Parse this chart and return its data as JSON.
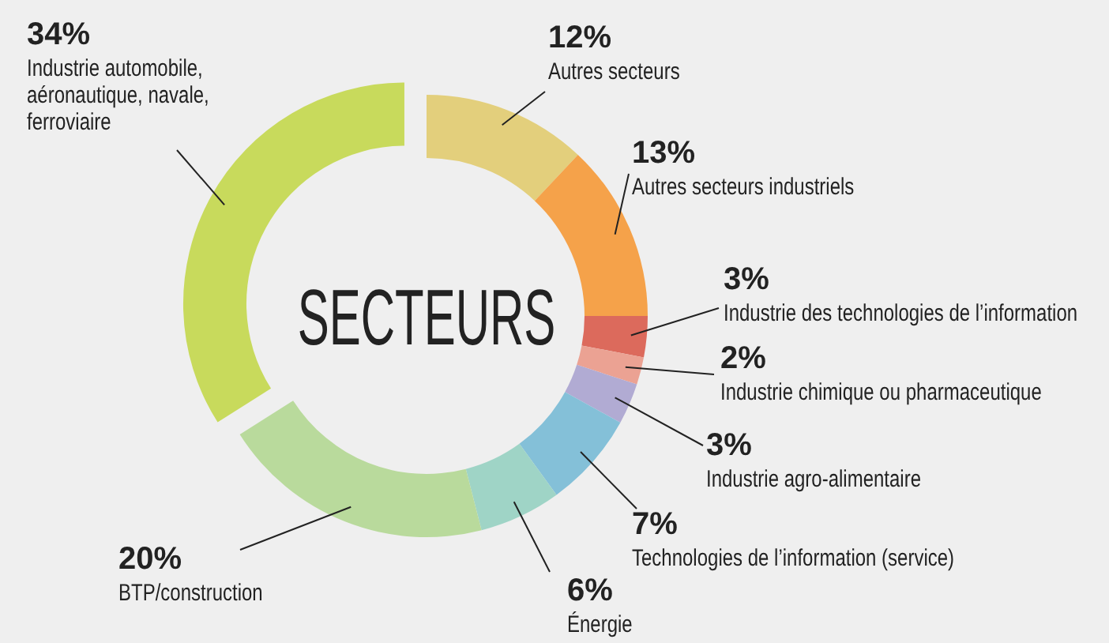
{
  "chart_data": {
    "type": "donut",
    "title": "SECTEURS",
    "categories": [
      "Autres secteurs",
      "Autres secteurs industriels",
      "Industrie des technologies de l’information",
      "Industrie chimique ou pharmaceutique",
      "Industrie agro-alimentaire",
      "Technologies de l’information (service)",
      "Énergie",
      "BTP/construction",
      "Industrie automobile, aéronautique, navale, ferroviaire"
    ],
    "values": [
      12,
      13,
      3,
      2,
      3,
      7,
      6,
      20,
      34
    ],
    "colors": [
      "#e3cf7c",
      "#f5a24a",
      "#dc6a5c",
      "#eba293",
      "#b1abd3",
      "#84c0d8",
      "#9fd4c6",
      "#b9da9c",
      "#c8da5c"
    ],
    "value_labels": [
      "12%",
      "13%",
      "3%",
      "2%",
      "3%",
      "7%",
      "6%",
      "20%",
      "34%"
    ]
  }
}
